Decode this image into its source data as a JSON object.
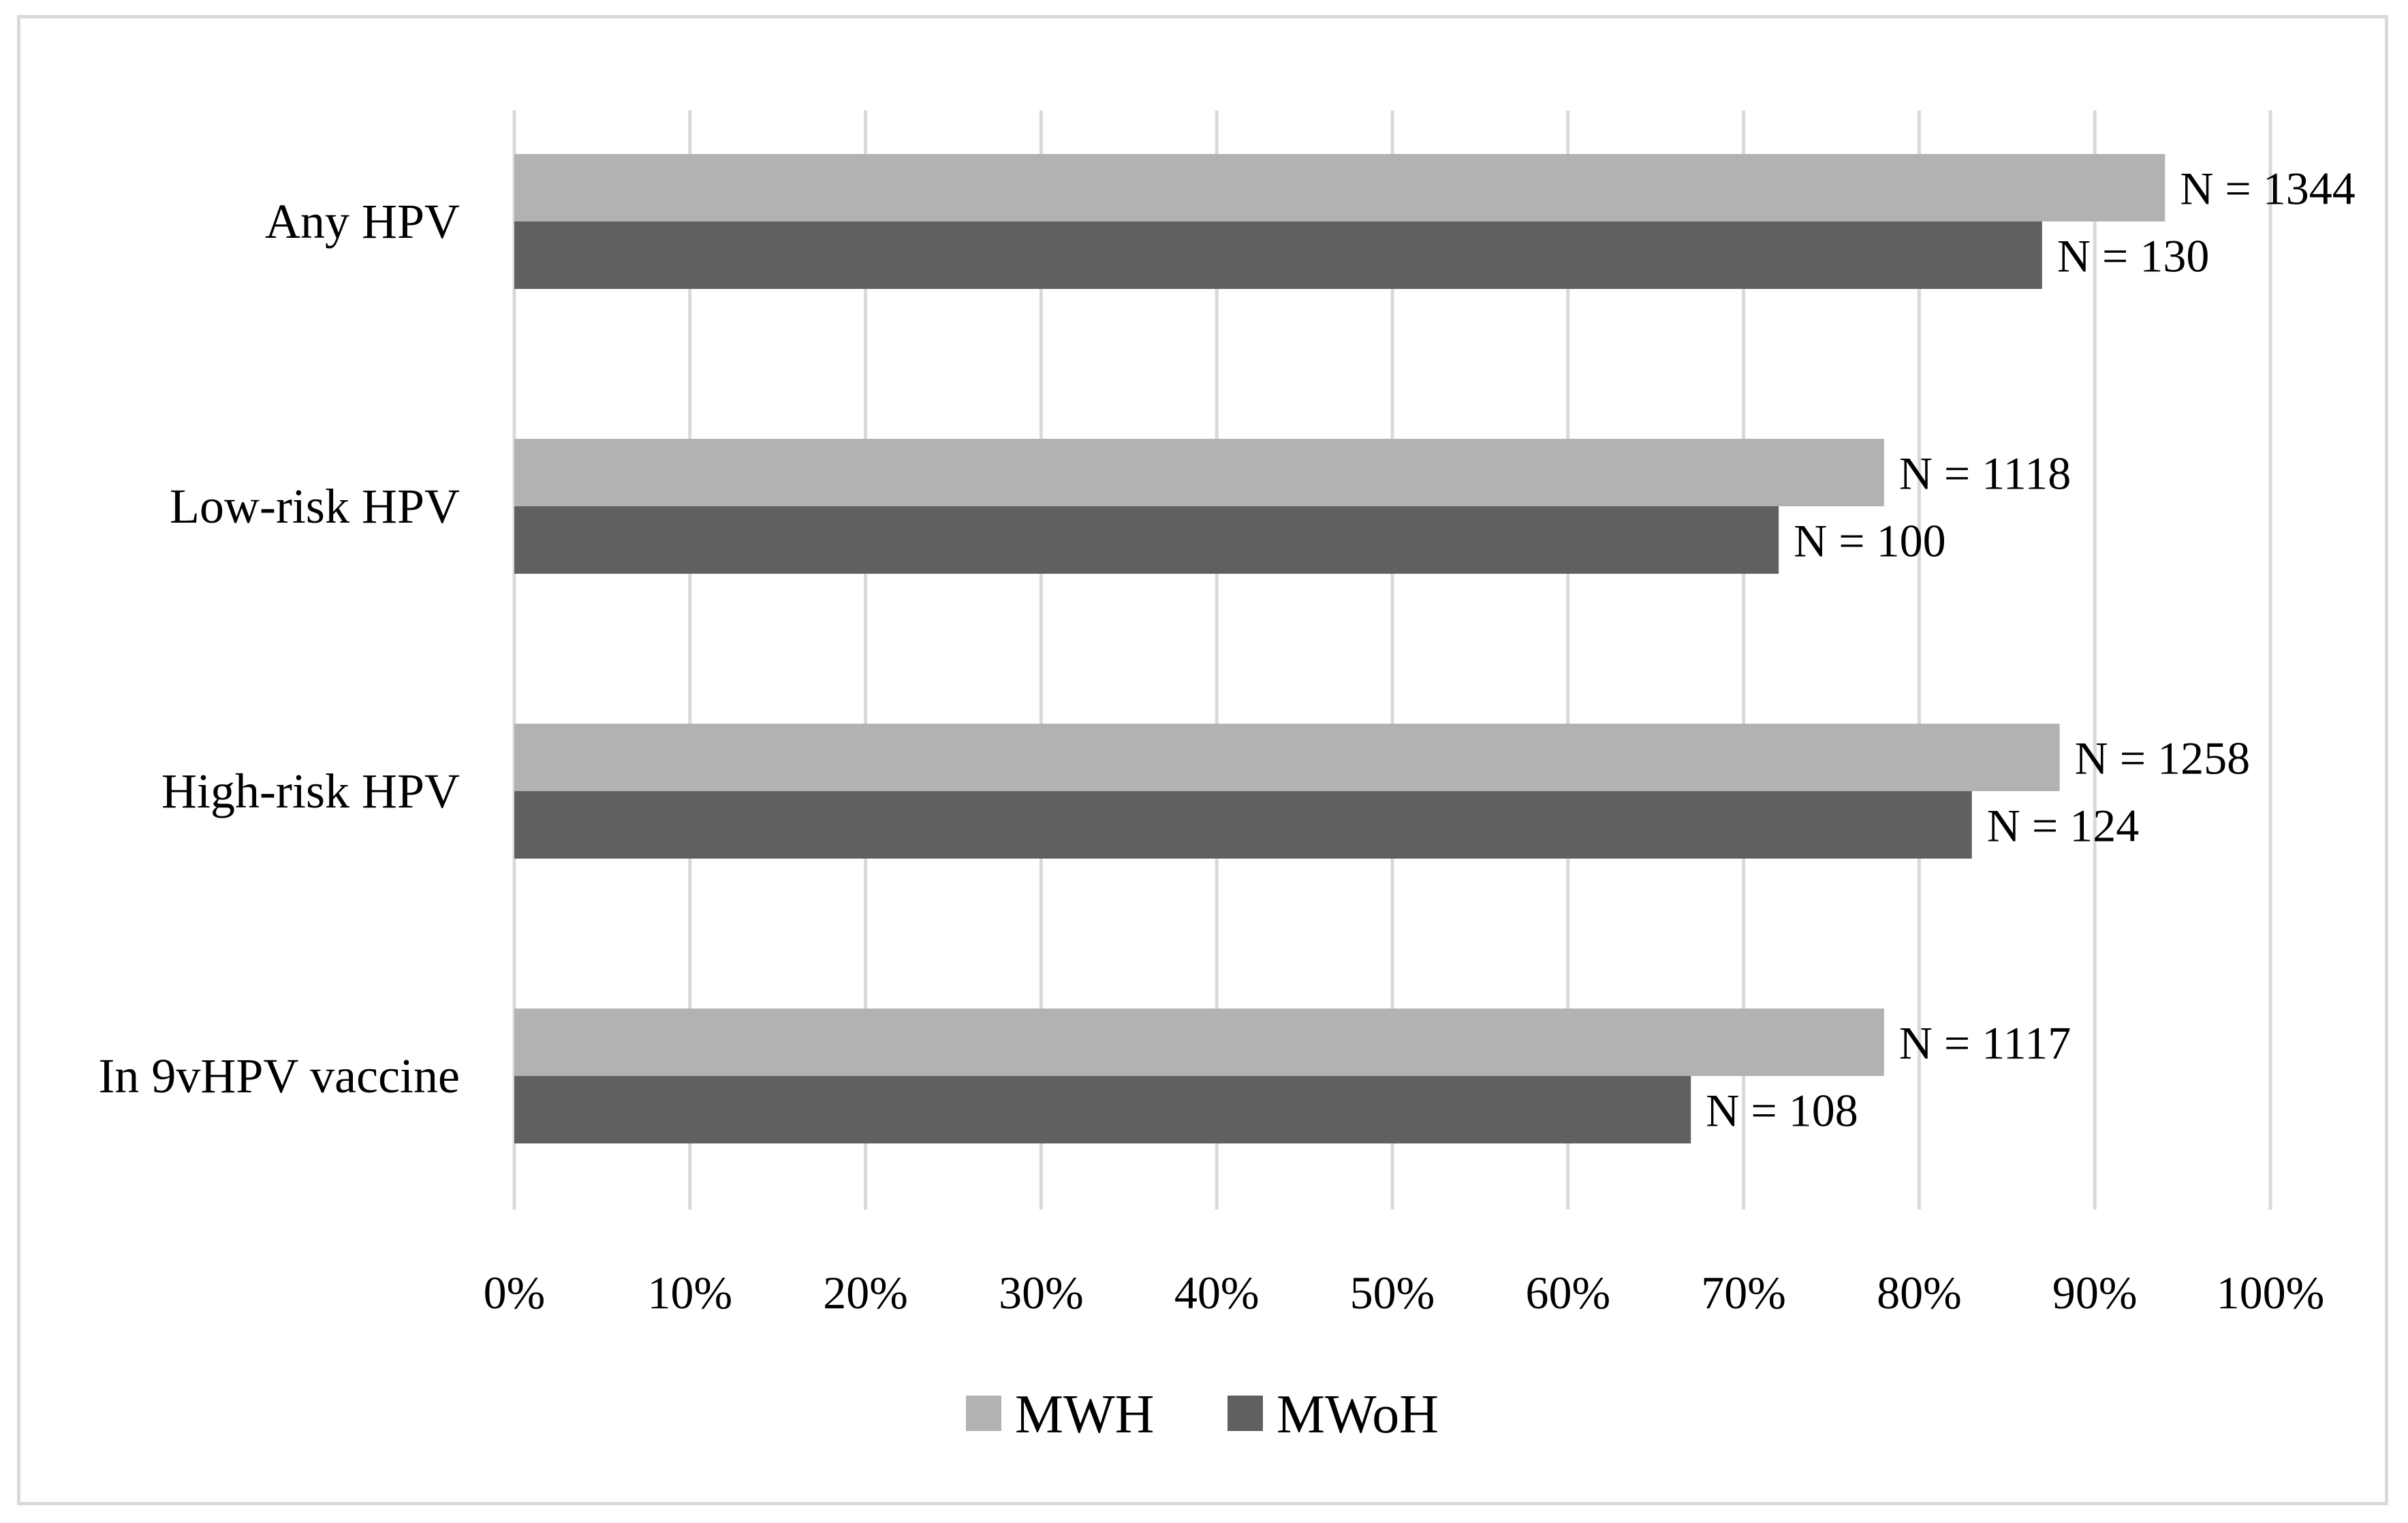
{
  "chart_data": {
    "type": "bar",
    "orientation": "horizontal",
    "title": "",
    "xlabel": "",
    "ylabel": "",
    "categories": [
      "Any HPV",
      "Low-risk HPV",
      "High-risk HPV",
      "In 9vHPV vaccine"
    ],
    "series": [
      {
        "name": "MWH",
        "color": "#b2b2b2",
        "values": [
          94,
          78,
          88,
          78
        ],
        "labels": [
          "N = 1344",
          "N = 1118",
          "N = 1258",
          "N = 1117"
        ]
      },
      {
        "name": "MWoH",
        "color": "#606060",
        "values": [
          87,
          72,
          83,
          67
        ],
        "labels": [
          "N = 130",
          "N = 100",
          "N = 124",
          "N = 108"
        ]
      }
    ],
    "xlim": [
      0,
      100
    ],
    "xticks": [
      0,
      10,
      20,
      30,
      40,
      50,
      60,
      70,
      80,
      90,
      100
    ],
    "xtick_labels": [
      "0%",
      "10%",
      "20%",
      "30%",
      "40%",
      "50%",
      "60%",
      "70%",
      "80%",
      "90%",
      "100%"
    ],
    "grid": true,
    "gridline_color": "#d9d9d9",
    "legend_position": "bottom"
  }
}
